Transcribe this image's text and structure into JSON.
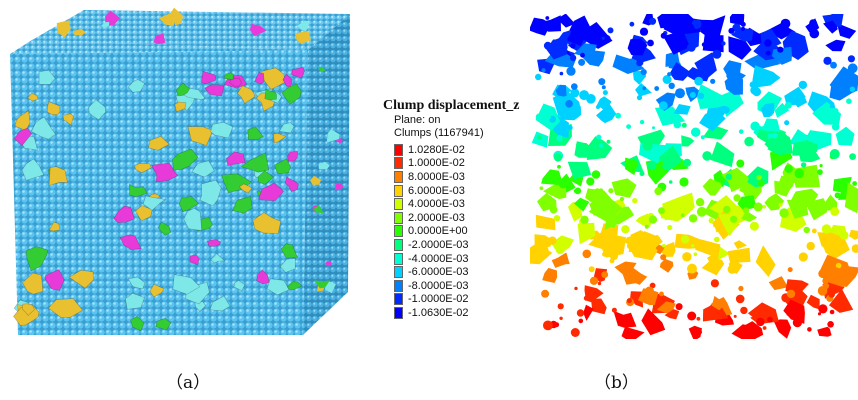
{
  "panel_a": {
    "sphere_color": "#4db8e8",
    "clump_colors": [
      "#e8c030",
      "#33cc33",
      "#e83ad8",
      "#7ee8e8"
    ],
    "caption": "（a）"
  },
  "legend": {
    "title": "Clump displacement_z",
    "plane_text": "Plane: on",
    "clumps_text": "Clumps (1167941)",
    "entries": [
      {
        "label": "1.0280E-02",
        "color": "#ff0000"
      },
      {
        "label": "1.0000E-02",
        "color": "#ff2a00"
      },
      {
        "label": "8.0000E-03",
        "color": "#ff7f00"
      },
      {
        "label": "6.0000E-03",
        "color": "#ffd200"
      },
      {
        "label": "4.0000E-03",
        "color": "#d2ff00"
      },
      {
        "label": "2.0000E-03",
        "color": "#7fff00"
      },
      {
        "label": "0.0000E+00",
        "color": "#2aff00"
      },
      {
        "label": "-2.0000E-03",
        "color": "#00ff7f"
      },
      {
        "label": "-4.0000E-03",
        "color": "#00ffd2"
      },
      {
        "label": "-6.0000E-03",
        "color": "#00d2ff"
      },
      {
        "label": "-8.0000E-03",
        "color": "#007fff"
      },
      {
        "label": "-1.0000E-02",
        "color": "#002aff"
      },
      {
        "label": "-1.0630E-02",
        "color": "#0000ff"
      }
    ]
  },
  "panel_b": {
    "caption": "（b）"
  }
}
